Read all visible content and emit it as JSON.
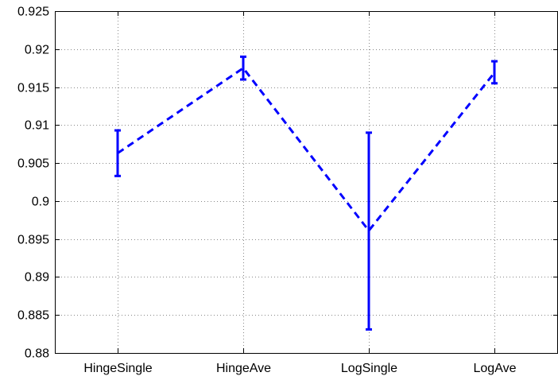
{
  "chart_data": {
    "type": "line",
    "categories": [
      "HingeSingle",
      "HingeAve",
      "LogSingle",
      "LogAve"
    ],
    "series": [
      {
        "values": [
          0.9063,
          0.9175,
          0.8961,
          0.9169
        ],
        "error_low": [
          0.9033,
          0.916,
          0.8831,
          0.9155
        ],
        "error_high": [
          0.9093,
          0.919,
          0.909,
          0.9184
        ],
        "color": "#0000ff",
        "line_style": "dashed",
        "error_bars": true
      }
    ],
    "title": "",
    "xlabel": "",
    "ylabel": "",
    "ylim": [
      0.88,
      0.925
    ],
    "yticks": [
      "0.88",
      "0.885",
      "0.89",
      "0.895",
      "0.9",
      "0.905",
      "0.91",
      "0.915",
      "0.92",
      "0.925"
    ],
    "grid": true,
    "grid_style": "dotted",
    "legend": "none"
  }
}
